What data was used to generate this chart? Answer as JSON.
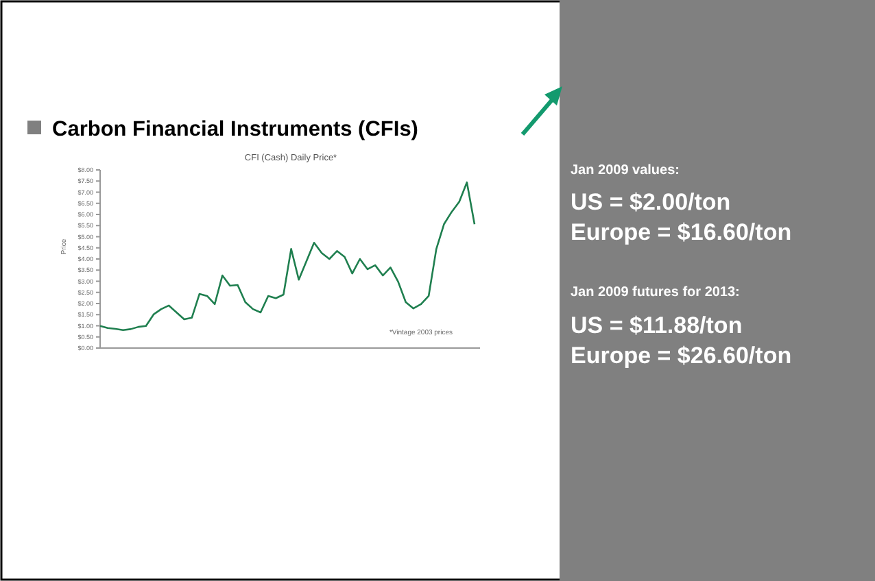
{
  "chart_data": {
    "type": "line",
    "title": "Carbon Financial Instruments (CFIs)",
    "subtitle": "CFI (Cash) Daily Price*",
    "ylabel": "Price",
    "categories": [
      null,
      null,
      null,
      null,
      null,
      null,
      null,
      null,
      null,
      null,
      null,
      null,
      null,
      null,
      null,
      null,
      null,
      null,
      null,
      null,
      null,
      null,
      null,
      null,
      null,
      null,
      null,
      null,
      null,
      null,
      null,
      null,
      null,
      null,
      null,
      null,
      null,
      null,
      null,
      null,
      null,
      null,
      null,
      null,
      null,
      null,
      null,
      null,
      null,
      null
    ],
    "series": [
      {
        "color": "#1f7f4f",
        "values": [
          0.99,
          0.9,
          0.86,
          0.81,
          0.85,
          0.95,
          0.99,
          1.51,
          1.75,
          1.91,
          1.6,
          1.29,
          1.36,
          2.43,
          2.34,
          1.97,
          3.26,
          2.8,
          2.83,
          2.06,
          1.75,
          1.6,
          2.34,
          2.24,
          2.4,
          4.45,
          3.07,
          3.9,
          4.73,
          4.27,
          4.0,
          4.36,
          4.09,
          3.35,
          4.0,
          3.54,
          3.72,
          3.26,
          3.62,
          2.98,
          2.06,
          1.78,
          1.97,
          2.34,
          4.45,
          5.56,
          6.11,
          6.57,
          7.44,
          5.56
        ]
      }
    ],
    "ylim": [
      0,
      8
    ],
    "yticks": [
      {
        "value": 0,
        "label": "$0.00"
      },
      {
        "value": 0.5,
        "label": "$0.50"
      },
      {
        "value": 1,
        "label": "$1.00"
      },
      {
        "value": 1.5,
        "label": "$1.50"
      },
      {
        "value": 2,
        "label": "$2.00"
      },
      {
        "value": 2.5,
        "label": "$2.50"
      },
      {
        "value": 3,
        "label": "$3.00"
      },
      {
        "value": 3.5,
        "label": "$3.50"
      },
      {
        "value": 4,
        "label": "$4.00"
      },
      {
        "value": 4.5,
        "label": "$4.50"
      },
      {
        "value": 5,
        "label": "$5.00"
      },
      {
        "value": 5.5,
        "label": "$5.50"
      },
      {
        "value": 6,
        "label": "$6.00"
      },
      {
        "value": 6.5,
        "label": "$6.50"
      },
      {
        "value": 7,
        "label": "$7.00"
      },
      {
        "value": 7.5,
        "label": "$7.50"
      },
      {
        "value": 8,
        "label": "$8.00"
      }
    ],
    "tick_labels": "y",
    "annotations": [
      "*Vintage 2003 prices",
      "Jan 2009 values:",
      "US = $2.00/ton",
      "Europe = $16.60/ton",
      "Jan 2009 futures for 2013:",
      "US = $11.88/ton",
      "Europe = $26.60/ton"
    ]
  }
}
